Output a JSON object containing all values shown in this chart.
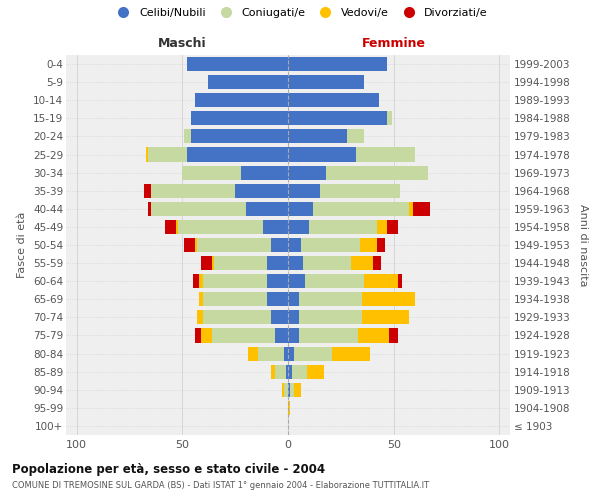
{
  "age_groups": [
    "100+",
    "95-99",
    "90-94",
    "85-89",
    "80-84",
    "75-79",
    "70-74",
    "65-69",
    "60-64",
    "55-59",
    "50-54",
    "45-49",
    "40-44",
    "35-39",
    "30-34",
    "25-29",
    "20-24",
    "15-19",
    "10-14",
    "5-9",
    "0-4"
  ],
  "birth_years": [
    "≤ 1903",
    "1904-1908",
    "1909-1913",
    "1914-1918",
    "1919-1923",
    "1924-1928",
    "1929-1933",
    "1934-1938",
    "1939-1943",
    "1944-1948",
    "1949-1953",
    "1954-1958",
    "1959-1963",
    "1964-1968",
    "1969-1973",
    "1974-1978",
    "1979-1983",
    "1984-1988",
    "1989-1993",
    "1994-1998",
    "1999-2003"
  ],
  "colors": {
    "celibi": "#4472c4",
    "coniugati": "#c5d9a0",
    "vedovi": "#ffc000",
    "divorziati": "#cc0000"
  },
  "maschi": {
    "celibi": [
      0,
      0,
      0,
      1,
      2,
      6,
      8,
      10,
      10,
      10,
      8,
      12,
      20,
      25,
      22,
      48,
      46,
      46,
      44,
      38,
      48
    ],
    "coniugati": [
      0,
      0,
      2,
      5,
      12,
      30,
      32,
      30,
      30,
      25,
      35,
      40,
      45,
      40,
      28,
      18,
      3,
      0,
      0,
      0,
      0
    ],
    "vedovi": [
      0,
      0,
      1,
      2,
      5,
      5,
      3,
      2,
      2,
      1,
      1,
      1,
      0,
      0,
      0,
      1,
      0,
      0,
      0,
      0,
      0
    ],
    "divorziati": [
      0,
      0,
      0,
      0,
      0,
      3,
      0,
      0,
      3,
      5,
      5,
      5,
      1,
      3,
      0,
      0,
      0,
      0,
      0,
      0,
      0
    ]
  },
  "femmine": {
    "celibi": [
      0,
      0,
      1,
      2,
      3,
      5,
      5,
      5,
      8,
      7,
      6,
      10,
      12,
      15,
      18,
      32,
      28,
      47,
      43,
      36,
      47
    ],
    "coniugati": [
      0,
      0,
      2,
      7,
      18,
      28,
      30,
      30,
      28,
      23,
      28,
      32,
      45,
      38,
      48,
      28,
      8,
      2,
      0,
      0,
      0
    ],
    "vedovi": [
      0,
      1,
      3,
      8,
      18,
      15,
      22,
      25,
      16,
      10,
      8,
      5,
      2,
      0,
      0,
      0,
      0,
      0,
      0,
      0,
      0
    ],
    "divorziati": [
      0,
      0,
      0,
      0,
      0,
      4,
      0,
      0,
      2,
      4,
      4,
      5,
      8,
      0,
      0,
      0,
      0,
      0,
      0,
      0,
      0
    ]
  },
  "title": "Popolazione per età, sesso e stato civile - 2004",
  "subtitle": "COMUNE DI TREMOSINE SUL GARDA (BS) - Dati ISTAT 1° gennaio 2004 - Elaborazione TUTTITALIA.IT",
  "xlabel_maschi": "Maschi",
  "xlabel_femmine": "Femmine",
  "ylabel_left": "Fasce di età",
  "ylabel_right": "Anni di nascita",
  "xlim": 105,
  "bg_color": "#efefef",
  "grid_color": "#cccccc",
  "bar_height": 0.78,
  "legend_labels": [
    "Celibi/Nubili",
    "Coniugati/e",
    "Vedovi/e",
    "Divorziati/e"
  ]
}
